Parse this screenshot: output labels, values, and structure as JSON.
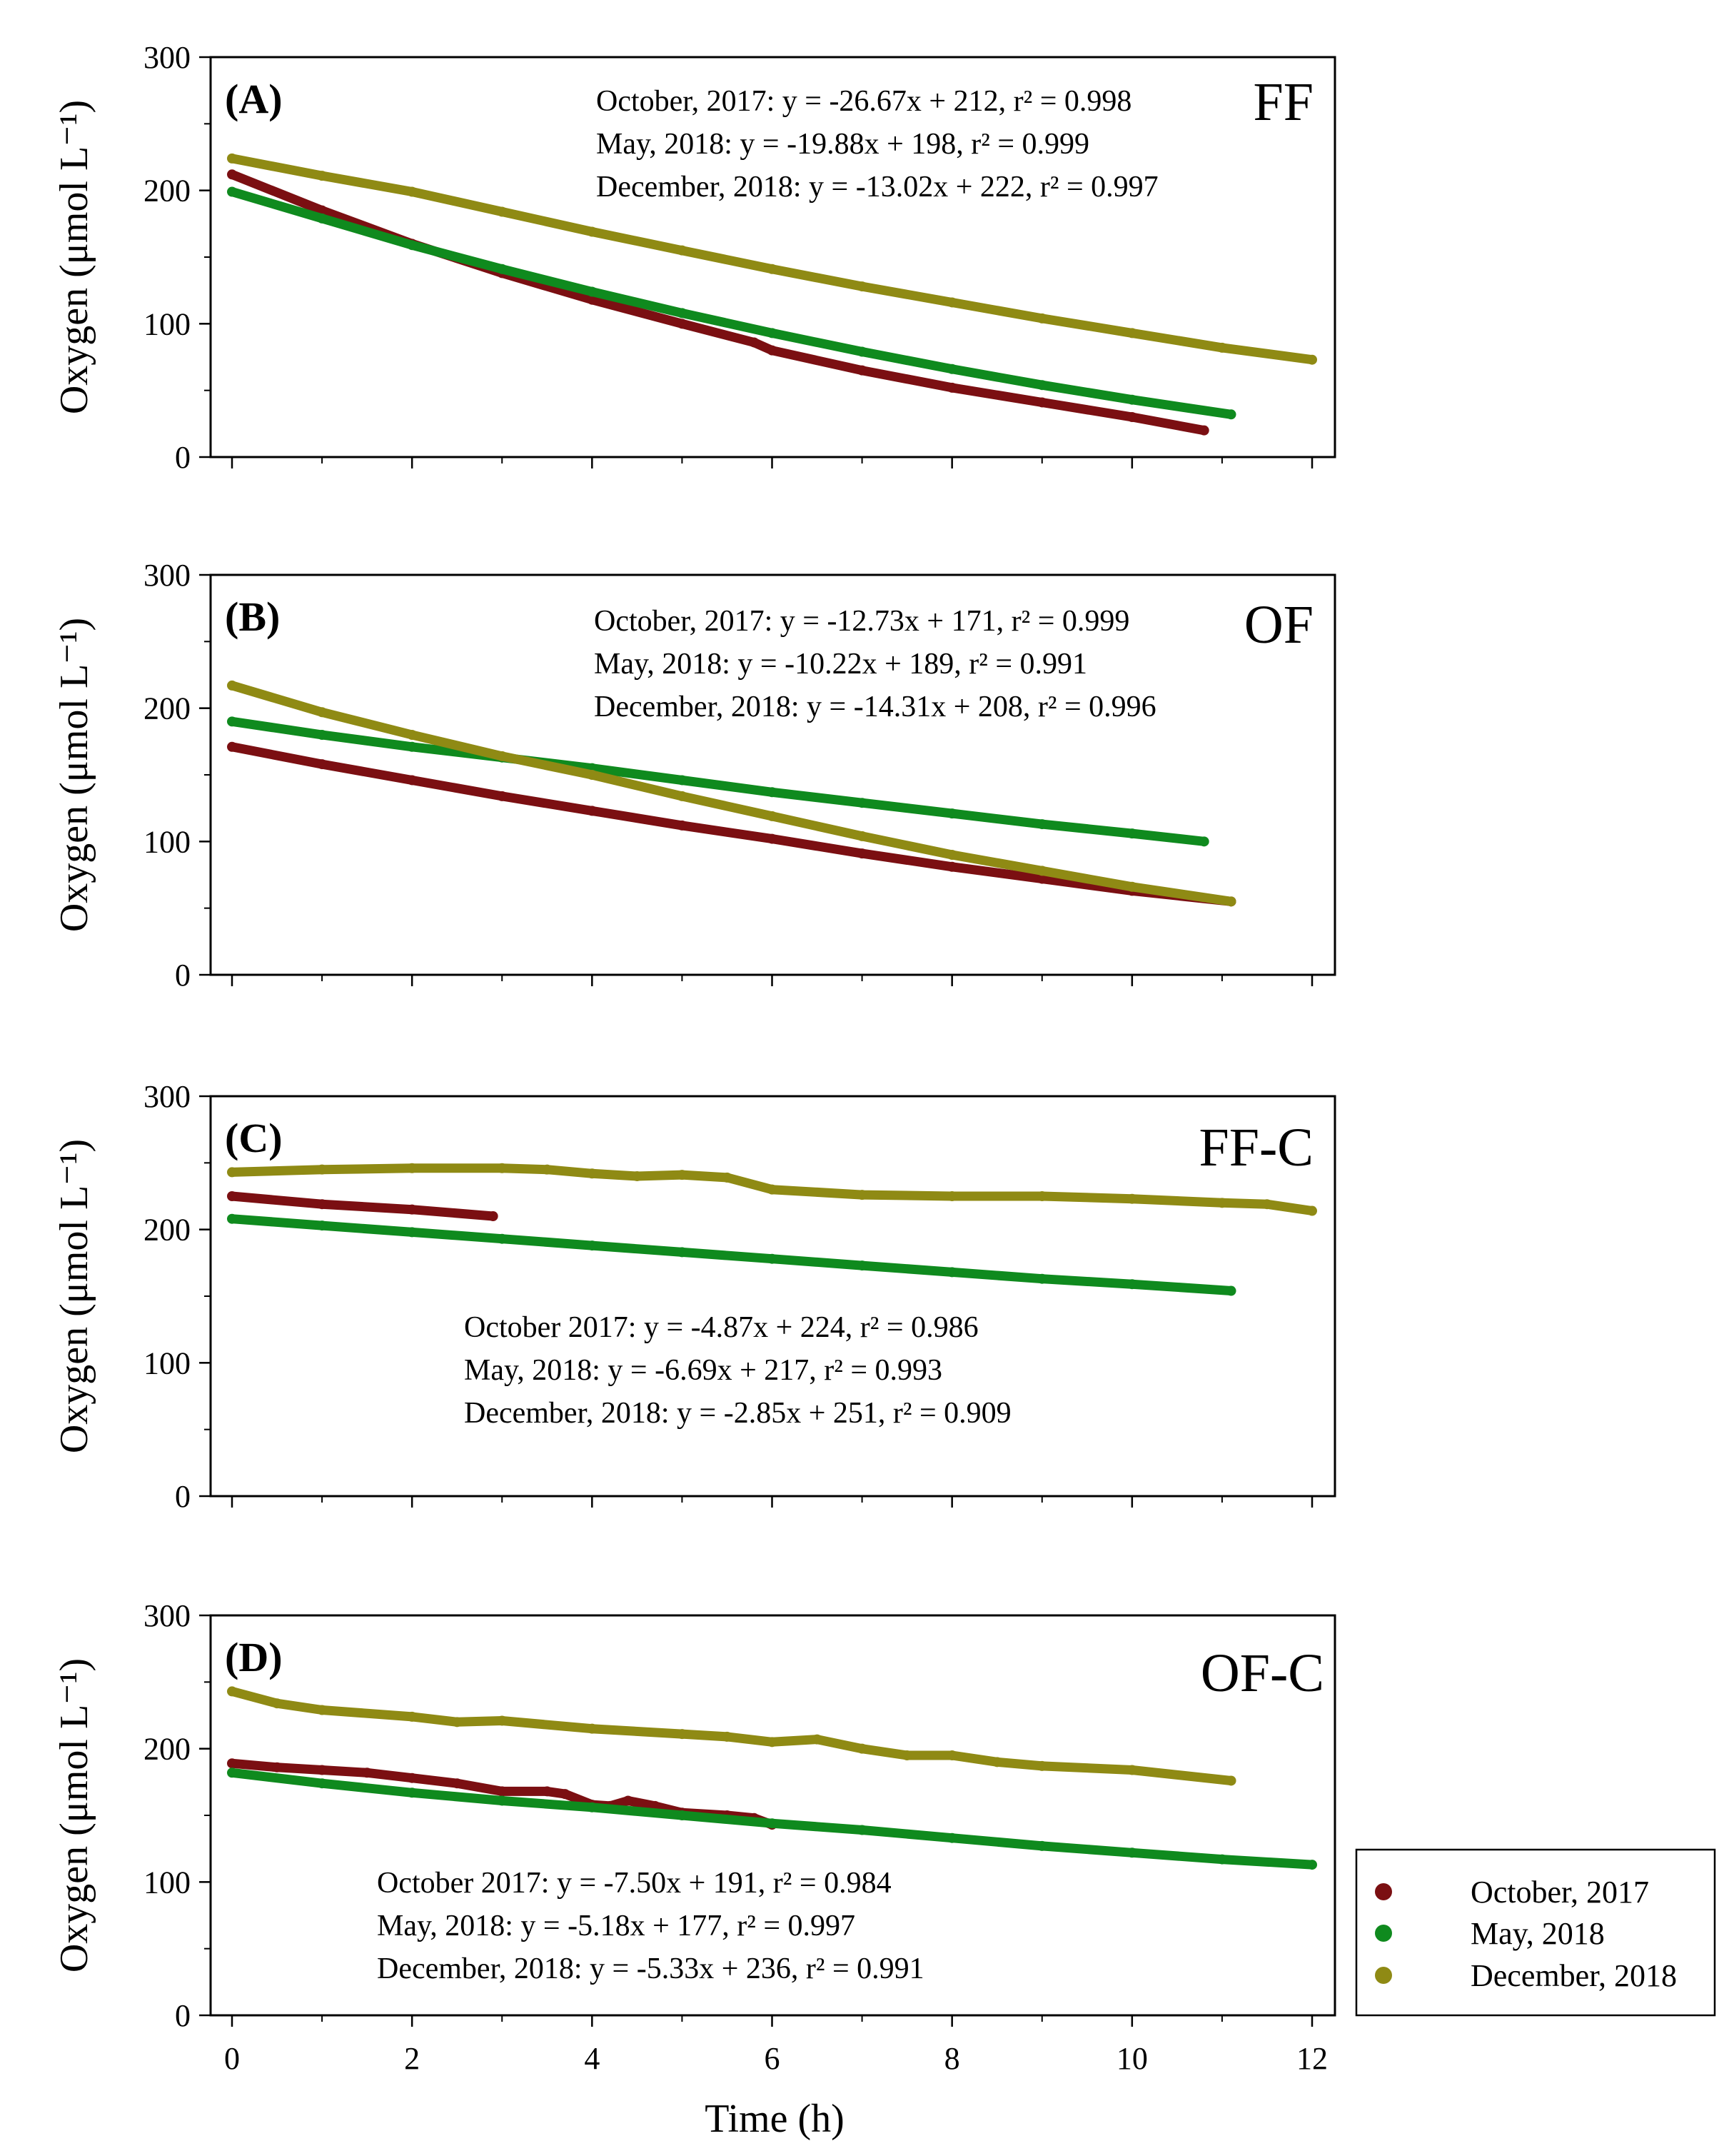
{
  "chart_data": {
    "type": "scatter",
    "xlabel": "Time (h)",
    "ylabel": "Oxygen (μmol L⁻¹)",
    "xlim": [
      0,
      12
    ],
    "ylim": [
      0,
      300
    ],
    "x_ticks": [
      "0",
      "2",
      "4",
      "6",
      "8",
      "10",
      "12"
    ],
    "y_ticks": [
      "0",
      "100",
      "200",
      "300"
    ],
    "colors": {
      "October, 2017": "#7b0f12",
      "May, 2018": "#0f8a1e",
      "December, 2018": "#8f8a14"
    },
    "legend": {
      "position": "bottom-right",
      "entries": [
        "October, 2017",
        "May, 2018",
        "December, 2018"
      ]
    },
    "panels": [
      {
        "label": "(A)",
        "tag": "FF",
        "equations": [
          "October, 2017: y = -26.67x + 212, r² = 0.998",
          "May, 2018: y = -19.88x + 198, r² = 0.999",
          "December, 2018: y = -13.02x + 222, r² = 0.997"
        ],
        "series": [
          {
            "name": "October, 2017",
            "x": [
              0,
              1,
              2,
              3,
              4,
              5,
              5.8,
              6,
              7,
              8,
              9,
              10,
              10.8
            ],
            "y": [
              212,
              185,
              160,
              138,
              118,
              100,
              86,
              80,
              65,
              52,
              41,
              30,
              20
            ]
          },
          {
            "name": "May, 2018",
            "x": [
              0,
              1,
              2,
              3,
              4,
              5,
              6,
              7,
              8,
              9,
              10,
              11.1
            ],
            "y": [
              199,
              179,
              159,
              141,
              124,
              108,
              93,
              79,
              66,
              54,
              43,
              32
            ]
          },
          {
            "name": "December, 2018",
            "x": [
              0,
              1,
              2,
              3,
              4,
              5,
              6,
              7,
              8,
              9,
              10,
              11,
              12
            ],
            "y": [
              224,
              211,
              199,
              184,
              169,
              155,
              141,
              128,
              116,
              104,
              93,
              82,
              73
            ]
          }
        ]
      },
      {
        "label": "(B)",
        "tag": "OF",
        "equations": [
          "October, 2017: y = -12.73x + 171, r² = 0.999",
          "May, 2018: y = -10.22x + 189, r² = 0.991",
          "December, 2018: y = -14.31x + 208, r² = 0.996"
        ],
        "series": [
          {
            "name": "October, 2017",
            "x": [
              0,
              1,
              2,
              3,
              4,
              5,
              6,
              7,
              8,
              9,
              10,
              11.1
            ],
            "y": [
              171,
              158,
              146,
              134,
              123,
              112,
              102,
              91,
              81,
              72,
              63,
              55
            ]
          },
          {
            "name": "May, 2018",
            "x": [
              0,
              1,
              2,
              3,
              4,
              5,
              6,
              7,
              8,
              9,
              10,
              10.8
            ],
            "y": [
              190,
              180,
              171,
              163,
              155,
              146,
              137,
              129,
              121,
              113,
              106,
              100
            ]
          },
          {
            "name": "December, 2018",
            "x": [
              0,
              1,
              2,
              3,
              4,
              5,
              6,
              7,
              8,
              9,
              10,
              11.1
            ],
            "y": [
              217,
              197,
              180,
              164,
              150,
              134,
              119,
              104,
              90,
              78,
              66,
              55
            ]
          }
        ]
      },
      {
        "label": "(C)",
        "tag": "FF-C",
        "equations": [
          "October 2017: y = -4.87x + 224, r² = 0.986",
          "May, 2018: y = -6.69x + 217, r² = 0.993",
          "December, 2018: y = -2.85x + 251, r² = 0.909"
        ],
        "series": [
          {
            "name": "October, 2017",
            "x": [
              0,
              1,
              2,
              2.9
            ],
            "y": [
              225,
              219,
              215,
              210
            ]
          },
          {
            "name": "May, 2018",
            "x": [
              0,
              1,
              2,
              3,
              4,
              5,
              6,
              7,
              8,
              9,
              10,
              11.1
            ],
            "y": [
              208,
              203,
              198,
              193,
              188,
              183,
              178,
              173,
              168,
              163,
              159,
              154
            ]
          },
          {
            "name": "December, 2018",
            "x": [
              0,
              1,
              2,
              3,
              3.5,
              4,
              4.5,
              5,
              5.5,
              6,
              7,
              8,
              9,
              10,
              11,
              11.5,
              12
            ],
            "y": [
              243,
              245,
              246,
              246,
              245,
              242,
              240,
              241,
              239,
              230,
              226,
              225,
              225,
              223,
              220,
              219,
              214
            ]
          }
        ]
      },
      {
        "label": "(D)",
        "tag": "OF-C",
        "equations": [
          "October 2017: y = -7.50x + 191, r² = 0.984",
          "May, 2018: y = -5.18x + 177, r² = 0.997",
          "December, 2018: y = -5.33x + 236, r² = 0.991"
        ],
        "series": [
          {
            "name": "October, 2017",
            "x": [
              0,
              0.5,
              1,
              1.5,
              2,
              2.5,
              3,
              3.5,
              3.7,
              4,
              4.2,
              4.4,
              4.7,
              5,
              5.5,
              5.8,
              6
            ],
            "y": [
              189,
              186,
              184,
              182,
              178,
              174,
              168,
              168,
              166,
              158,
              157,
              161,
              157,
              152,
              150,
              148,
              143
            ]
          },
          {
            "name": "May, 2018",
            "x": [
              0,
              1,
              2,
              3,
              4,
              5,
              6,
              7,
              8,
              9,
              10,
              11,
              12
            ],
            "y": [
              182,
              174,
              167,
              161,
              156,
              150,
              144,
              139,
              133,
              127,
              122,
              117,
              113
            ]
          },
          {
            "name": "December, 2018",
            "x": [
              0,
              0.5,
              1,
              2,
              2.5,
              3,
              4,
              5,
              5.5,
              6,
              6.5,
              7,
              7.5,
              8,
              8.5,
              9,
              10,
              11.1
            ],
            "y": [
              243,
              234,
              229,
              224,
              220,
              221,
              215,
              211,
              209,
              205,
              207,
              200,
              195,
              195,
              190,
              187,
              184,
              176
            ]
          }
        ]
      }
    ]
  }
}
